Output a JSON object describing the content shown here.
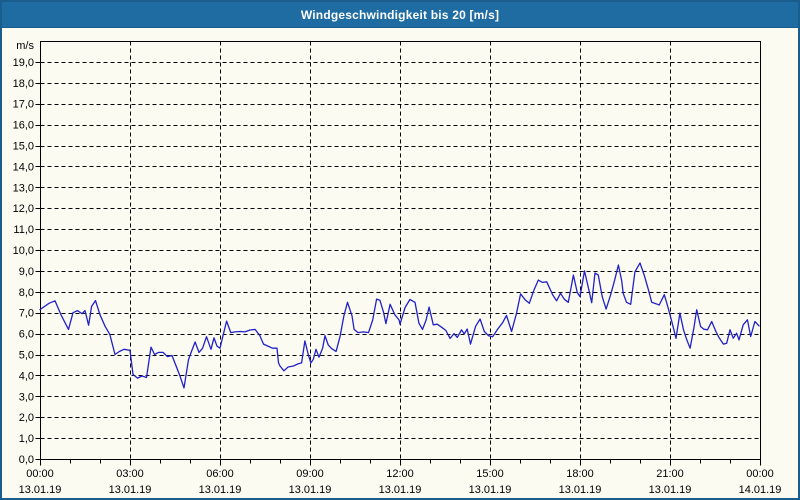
{
  "window": {
    "title": "Windgeschwindigkeit bis 20 [m/s]"
  },
  "colors": {
    "titlebar_bg": "#1E6CA2",
    "title_text": "#FFFFFF",
    "frame_border": "#1A5C8E",
    "content_bg": "#FCFBF2",
    "line": "#2121C8",
    "grid": "#000000",
    "text": "#000000"
  },
  "chart_data": {
    "type": "line",
    "title": "Windgeschwindigkeit bis 20 [m/s]",
    "ylabel": "m/s",
    "ylim": [
      0,
      20
    ],
    "y_tick_step": 1,
    "y_tick_labels": [
      "0,0",
      "1,0",
      "2,0",
      "3,0",
      "4,0",
      "5,0",
      "6,0",
      "7,0",
      "8,0",
      "9,0",
      "10,0",
      "11,0",
      "12,0",
      "13,0",
      "14,0",
      "15,0",
      "16,0",
      "17,0",
      "18,0",
      "19,0"
    ],
    "x_range_hours": [
      0,
      24
    ],
    "x_minor_tick_hours": 1,
    "x_ticks": [
      {
        "hour": 0,
        "time": "00:00",
        "date": "13.01.19"
      },
      {
        "hour": 3,
        "time": "03:00",
        "date": "13.01.19"
      },
      {
        "hour": 6,
        "time": "06:00",
        "date": "13.01.19"
      },
      {
        "hour": 9,
        "time": "09:00",
        "date": "13.01.19"
      },
      {
        "hour": 12,
        "time": "12:00",
        "date": "13.01.19"
      },
      {
        "hour": 15,
        "time": "15:00",
        "date": "13.01.19"
      },
      {
        "hour": 18,
        "time": "18:00",
        "date": "13.01.19"
      },
      {
        "hour": 21,
        "time": "21:00",
        "date": "13.01.19"
      },
      {
        "hour": 24,
        "time": "00:00",
        "date": "14.01.19"
      }
    ],
    "grid": {
      "horizontal": "dashed",
      "vertical": "dashed"
    },
    "legend": "none",
    "series": [
      {
        "name": "Windgeschwindigkeit",
        "unit": "m/s",
        "points": [
          [
            0.0,
            7.15
          ],
          [
            0.3,
            7.45
          ],
          [
            0.5,
            7.57
          ],
          [
            0.7,
            6.9
          ],
          [
            0.95,
            6.2
          ],
          [
            1.1,
            7.0
          ],
          [
            1.25,
            7.1
          ],
          [
            1.4,
            6.95
          ],
          [
            1.5,
            7.1
          ],
          [
            1.62,
            6.4
          ],
          [
            1.72,
            7.3
          ],
          [
            1.85,
            7.58
          ],
          [
            2.0,
            6.9
          ],
          [
            2.17,
            6.35
          ],
          [
            2.33,
            5.95
          ],
          [
            2.5,
            5.0
          ],
          [
            2.65,
            5.15
          ],
          [
            2.8,
            5.25
          ],
          [
            3.0,
            5.2
          ],
          [
            3.1,
            4.05
          ],
          [
            3.25,
            3.87
          ],
          [
            3.4,
            3.97
          ],
          [
            3.55,
            3.9
          ],
          [
            3.7,
            5.35
          ],
          [
            3.82,
            5.0
          ],
          [
            3.95,
            5.1
          ],
          [
            4.1,
            5.1
          ],
          [
            4.25,
            4.9
          ],
          [
            4.4,
            4.95
          ],
          [
            4.55,
            4.4
          ],
          [
            4.67,
            3.95
          ],
          [
            4.8,
            3.4
          ],
          [
            4.95,
            4.75
          ],
          [
            5.05,
            5.15
          ],
          [
            5.17,
            5.6
          ],
          [
            5.3,
            5.1
          ],
          [
            5.42,
            5.3
          ],
          [
            5.55,
            5.85
          ],
          [
            5.7,
            5.25
          ],
          [
            5.8,
            5.8
          ],
          [
            5.9,
            5.4
          ],
          [
            6.0,
            5.3
          ],
          [
            6.1,
            5.9
          ],
          [
            6.22,
            6.6
          ],
          [
            6.36,
            6.05
          ],
          [
            6.5,
            6.08
          ],
          [
            6.67,
            6.1
          ],
          [
            6.83,
            6.08
          ],
          [
            7.0,
            6.17
          ],
          [
            7.17,
            6.2
          ],
          [
            7.33,
            5.9
          ],
          [
            7.45,
            5.5
          ],
          [
            7.6,
            5.4
          ],
          [
            7.75,
            5.3
          ],
          [
            7.9,
            5.3
          ],
          [
            7.95,
            4.6
          ],
          [
            8.0,
            4.45
          ],
          [
            8.13,
            4.22
          ],
          [
            8.27,
            4.4
          ],
          [
            8.45,
            4.45
          ],
          [
            8.6,
            4.55
          ],
          [
            8.72,
            4.6
          ],
          [
            8.83,
            5.65
          ],
          [
            8.95,
            4.95
          ],
          [
            9.03,
            4.6
          ],
          [
            9.11,
            4.77
          ],
          [
            9.2,
            5.25
          ],
          [
            9.3,
            4.87
          ],
          [
            9.42,
            5.3
          ],
          [
            9.5,
            5.9
          ],
          [
            9.61,
            5.45
          ],
          [
            9.72,
            5.28
          ],
          [
            9.87,
            5.15
          ],
          [
            10.0,
            5.85
          ],
          [
            10.13,
            6.85
          ],
          [
            10.25,
            7.5
          ],
          [
            10.4,
            6.85
          ],
          [
            10.47,
            6.2
          ],
          [
            10.6,
            6.05
          ],
          [
            10.78,
            6.08
          ],
          [
            10.95,
            6.05
          ],
          [
            11.09,
            6.65
          ],
          [
            11.22,
            7.65
          ],
          [
            11.33,
            7.6
          ],
          [
            11.45,
            7.03
          ],
          [
            11.53,
            6.48
          ],
          [
            11.67,
            7.4
          ],
          [
            11.83,
            6.9
          ],
          [
            11.97,
            6.65
          ],
          [
            12.0,
            6.45
          ],
          [
            12.17,
            7.25
          ],
          [
            12.33,
            7.63
          ],
          [
            12.5,
            7.5
          ],
          [
            12.63,
            6.5
          ],
          [
            12.75,
            6.2
          ],
          [
            12.87,
            6.65
          ],
          [
            12.97,
            7.27
          ],
          [
            13.11,
            6.42
          ],
          [
            13.24,
            6.45
          ],
          [
            13.39,
            6.3
          ],
          [
            13.53,
            6.15
          ],
          [
            13.67,
            5.77
          ],
          [
            13.8,
            6.0
          ],
          [
            13.91,
            5.82
          ],
          [
            14.05,
            6.18
          ],
          [
            14.14,
            5.98
          ],
          [
            14.24,
            6.22
          ],
          [
            14.35,
            5.5
          ],
          [
            14.52,
            6.35
          ],
          [
            14.67,
            6.7
          ],
          [
            14.81,
            6.1
          ],
          [
            14.95,
            5.9
          ],
          [
            15.09,
            5.85
          ],
          [
            15.25,
            6.2
          ],
          [
            15.42,
            6.52
          ],
          [
            15.55,
            6.87
          ],
          [
            15.72,
            6.1
          ],
          [
            15.88,
            6.95
          ],
          [
            16.02,
            7.9
          ],
          [
            16.17,
            7.62
          ],
          [
            16.31,
            7.45
          ],
          [
            16.47,
            8.1
          ],
          [
            16.61,
            8.56
          ],
          [
            16.75,
            8.45
          ],
          [
            16.89,
            8.48
          ],
          [
            17.09,
            7.85
          ],
          [
            17.22,
            7.57
          ],
          [
            17.35,
            7.93
          ],
          [
            17.48,
            7.64
          ],
          [
            17.61,
            7.5
          ],
          [
            17.78,
            8.8
          ],
          [
            17.91,
            7.96
          ],
          [
            18.0,
            7.77
          ],
          [
            18.15,
            9.0
          ],
          [
            18.3,
            8.06
          ],
          [
            18.39,
            7.48
          ],
          [
            18.5,
            8.9
          ],
          [
            18.61,
            8.8
          ],
          [
            18.74,
            7.77
          ],
          [
            18.87,
            7.17
          ],
          [
            19.02,
            7.85
          ],
          [
            19.15,
            8.53
          ],
          [
            19.28,
            9.28
          ],
          [
            19.39,
            8.53
          ],
          [
            19.44,
            7.93
          ],
          [
            19.55,
            7.5
          ],
          [
            19.69,
            7.4
          ],
          [
            19.83,
            8.95
          ],
          [
            19.97,
            9.3
          ],
          [
            20.0,
            9.38
          ],
          [
            20.14,
            8.8
          ],
          [
            20.28,
            8.1
          ],
          [
            20.39,
            7.5
          ],
          [
            20.53,
            7.43
          ],
          [
            20.64,
            7.37
          ],
          [
            20.81,
            7.86
          ],
          [
            20.94,
            7.22
          ],
          [
            21.05,
            6.63
          ],
          [
            21.13,
            6.18
          ],
          [
            21.2,
            5.77
          ],
          [
            21.33,
            6.98
          ],
          [
            21.45,
            6.18
          ],
          [
            21.55,
            5.74
          ],
          [
            21.67,
            5.3
          ],
          [
            21.8,
            6.3
          ],
          [
            21.89,
            7.14
          ],
          [
            22.02,
            6.34
          ],
          [
            22.13,
            6.21
          ],
          [
            22.25,
            6.18
          ],
          [
            22.39,
            6.58
          ],
          [
            22.53,
            6.1
          ],
          [
            22.63,
            5.82
          ],
          [
            22.78,
            5.5
          ],
          [
            22.89,
            5.54
          ],
          [
            23.0,
            6.18
          ],
          [
            23.11,
            5.78
          ],
          [
            23.22,
            6.02
          ],
          [
            23.3,
            5.7
          ],
          [
            23.44,
            6.42
          ],
          [
            23.58,
            6.66
          ],
          [
            23.69,
            5.86
          ],
          [
            23.83,
            6.58
          ],
          [
            23.97,
            6.37
          ]
        ]
      }
    ]
  }
}
